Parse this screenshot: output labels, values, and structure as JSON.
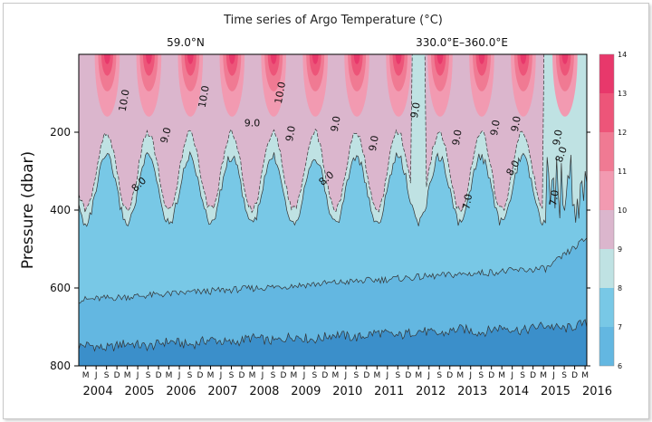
{
  "chart_data": {
    "type": "contour-time-series",
    "title": "Time series of Argo Temperature (°C)",
    "latitude_label": "59.0°N",
    "longitude_label": "330.0°E–360.0°E",
    "ylabel": "Pressure (dbar)",
    "y_ticks": [
      200,
      400,
      600,
      800
    ],
    "ylim": [
      800,
      0
    ],
    "years": [
      "2004",
      "2005",
      "2006",
      "2007",
      "2008",
      "2009",
      "2010",
      "2011",
      "2012",
      "2013",
      "2014",
      "2015",
      "2016"
    ],
    "month_letters": [
      "M",
      "J",
      "S",
      "D"
    ],
    "colorbar": {
      "levels": [
        14,
        13,
        12,
        11,
        10,
        9,
        8,
        7,
        6
      ],
      "colors": [
        "#e8386b",
        "#ed5579",
        "#f07a93",
        "#f29ab1",
        "#dbb6cd",
        "#bfe2e3",
        "#78c8e6",
        "#63b7e1",
        "#3b8fca"
      ]
    },
    "contour_labels": [
      "10.0",
      "10.0",
      "10.0",
      "9.0",
      "9.0",
      "9.0",
      "9.0",
      "9.0",
      "9.0",
      "9.0",
      "9.0",
      "9.0",
      "9.0",
      "8.0",
      "8.0",
      "8.0",
      "8.0",
      "7.0",
      "7.0"
    ]
  }
}
